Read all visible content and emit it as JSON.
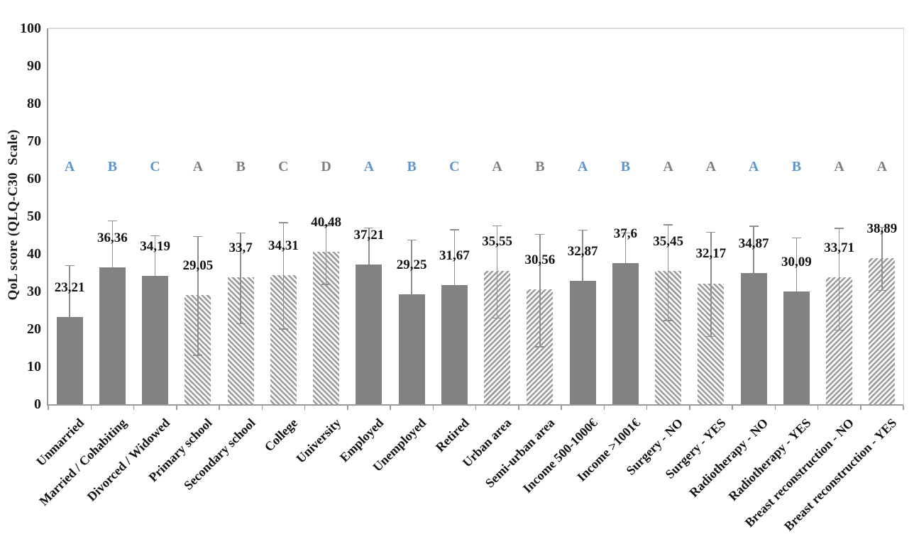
{
  "chart_data": {
    "type": "bar",
    "title": "",
    "ylabel": "QoL score (QLQ-C30  Scale)",
    "xlabel": "",
    "ylim": [
      0,
      100
    ],
    "ytick_labels": [
      "0",
      "10",
      "20",
      "30",
      "40",
      "50",
      "60",
      "70",
      "80",
      "90",
      "100"
    ],
    "grid": false,
    "legend": false,
    "categories": [
      "Unmarried",
      "Married / Cohabiting",
      "Divorced / Widowed",
      "Primary school",
      "Secondary school",
      "College",
      "University",
      "Employed",
      "Unemployed",
      "Retired",
      "Urban area",
      "Semi-urban area",
      "Income 500-1000€",
      "Income >1001€",
      "Surgery - NO",
      "Surgery - YES",
      "Radiotherapy - NO",
      "Radiotherapy - YES",
      "Breast reconstruction - NO",
      "Breast reconstruction - YES"
    ],
    "values": [
      23.21,
      36.36,
      34.19,
      29.05,
      33.7,
      34.31,
      40.48,
      37.21,
      29.25,
      31.67,
      35.55,
      30.56,
      32.87,
      37.6,
      35.45,
      32.17,
      34.87,
      30.09,
      33.71,
      38.89
    ],
    "value_labels": [
      "23,21",
      "36,36",
      "34,19",
      "29,05",
      "33,7",
      "34,31",
      "40,48",
      "37,21",
      "29,25",
      "31,67",
      "35,55",
      "30,56",
      "32,87",
      "37,6",
      "35,45",
      "32,17",
      "34,87",
      "30,09",
      "33,71",
      "38,89"
    ],
    "bar_styles": [
      "solid",
      "solid",
      "solid",
      "hatch-down",
      "hatch-down",
      "hatch-down",
      "hatch-down",
      "solid",
      "solid",
      "solid",
      "hatch-up",
      "hatch-up",
      "solid",
      "solid",
      "hatch-down",
      "hatch-down",
      "solid",
      "solid",
      "hatch-up",
      "hatch-up"
    ],
    "error_bar_top": [
      37.0,
      48.9,
      45.0,
      44.8,
      45.7,
      48.4,
      47.7,
      47.0,
      43.8,
      46.6,
      47.6,
      45.3,
      46.5,
      45.7,
      47.9,
      45.9,
      47.5,
      44.4,
      46.9,
      47.2
    ],
    "error_bar_bottom": [
      null,
      null,
      null,
      13.2,
      21.6,
      20.1,
      32.0,
      null,
      null,
      null,
      23.1,
      15.4,
      null,
      null,
      22.4,
      18.2,
      null,
      null,
      19.9,
      30.4
    ],
    "significance_letters": [
      "A",
      "B",
      "C",
      "A",
      "B",
      "C",
      "D",
      "A",
      "B",
      "C",
      "A",
      "B",
      "A",
      "B",
      "A",
      "A",
      "A",
      "B",
      "A",
      "A"
    ],
    "significance_letter_colors": [
      "blue",
      "blue",
      "blue",
      "gray",
      "gray",
      "gray",
      "gray",
      "blue",
      "blue",
      "blue",
      "gray",
      "gray",
      "blue",
      "blue",
      "gray",
      "gray",
      "blue",
      "blue",
      "gray",
      "gray"
    ],
    "significance_letters_y": 63,
    "colors": {
      "solid_bar": "#828282",
      "hatch_stripe": "#9a9a9a",
      "error_bar": "#8f8f8f",
      "letter_blue": "#5f94cc",
      "letter_gray": "#7f7f7f",
      "axis": "#9a9a9a",
      "plot_border": "#dadada",
      "text": "#111111"
    }
  }
}
